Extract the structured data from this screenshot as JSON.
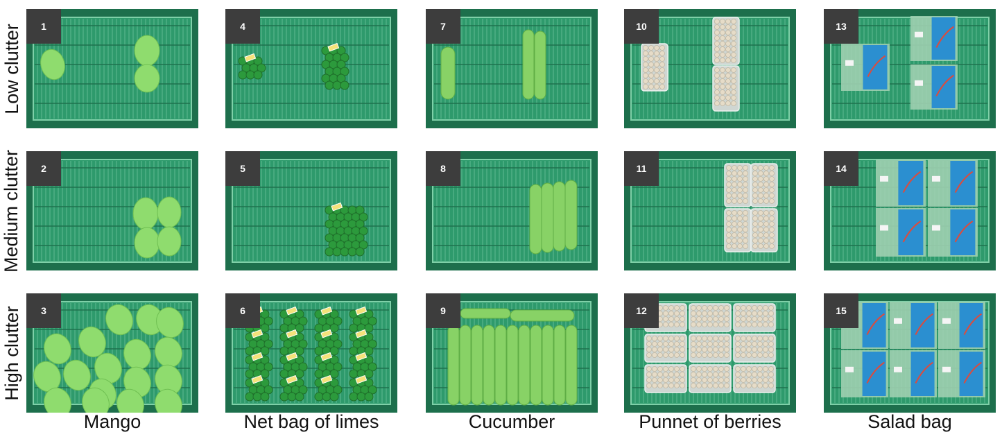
{
  "rows": [
    {
      "label": "Low clutter",
      "level": "low"
    },
    {
      "label": "Medium clutter",
      "level": "medium"
    },
    {
      "label": "High clutter",
      "level": "high"
    }
  ],
  "columns": [
    {
      "label": "Mango",
      "item": "mango"
    },
    {
      "label": "Net bag of limes",
      "item": "limes"
    },
    {
      "label": "Cucumber",
      "item": "cucumber"
    },
    {
      "label": "Punnet of berries",
      "item": "berries"
    },
    {
      "label": "Salad bag",
      "item": "salad"
    }
  ],
  "cells": [
    {
      "number": "1",
      "item": "mango",
      "level": "low"
    },
    {
      "number": "2",
      "item": "mango",
      "level": "medium"
    },
    {
      "number": "3",
      "item": "mango",
      "level": "high"
    },
    {
      "number": "4",
      "item": "limes",
      "level": "low"
    },
    {
      "number": "5",
      "item": "limes",
      "level": "medium"
    },
    {
      "number": "6",
      "item": "limes",
      "level": "high"
    },
    {
      "number": "7",
      "item": "cucumber",
      "level": "low"
    },
    {
      "number": "8",
      "item": "cucumber",
      "level": "medium"
    },
    {
      "number": "9",
      "item": "cucumber",
      "level": "high"
    },
    {
      "number": "10",
      "item": "berries",
      "level": "low"
    },
    {
      "number": "11",
      "item": "berries",
      "level": "medium"
    },
    {
      "number": "12",
      "item": "berries",
      "level": "high"
    },
    {
      "number": "13",
      "item": "salad",
      "level": "low"
    },
    {
      "number": "14",
      "item": "salad",
      "level": "medium"
    },
    {
      "number": "15",
      "item": "salad",
      "level": "high"
    }
  ],
  "colors": {
    "crate": "#2e9a6c",
    "crate_dark": "#1d6f4c",
    "crate_slat": "#5cb88e",
    "mango": "#8fdc6e",
    "cucumber": "#88d266",
    "lime": "#2c9a3c",
    "berry": "#e6dcc8",
    "salad_blue": "#2b8fd0",
    "number_box": "#3d3d3d"
  }
}
